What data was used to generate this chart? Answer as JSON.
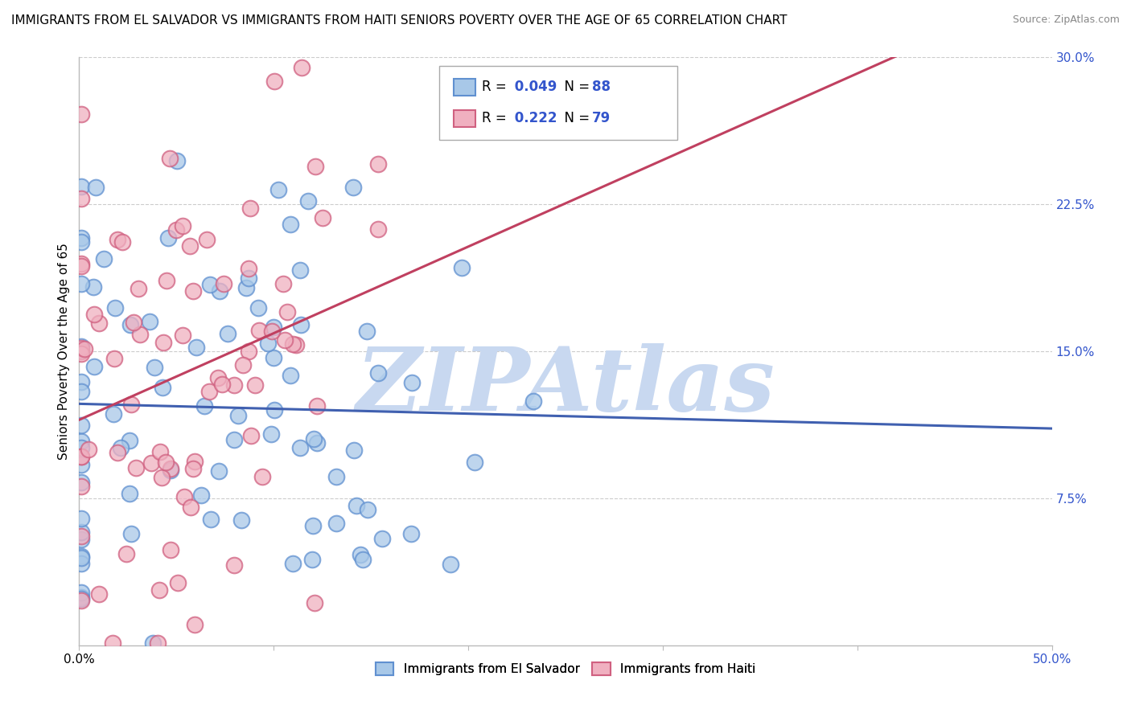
{
  "title": "IMMIGRANTS FROM EL SALVADOR VS IMMIGRANTS FROM HAITI SENIORS POVERTY OVER THE AGE OF 65 CORRELATION CHART",
  "source": "Source: ZipAtlas.com",
  "ylabel": "Seniors Poverty Over the Age of 65",
  "xlim": [
    0.0,
    0.5
  ],
  "ylim": [
    0.0,
    0.3
  ],
  "xticks": [
    0.0,
    0.1,
    0.2,
    0.3,
    0.4,
    0.5
  ],
  "xticklabels": [
    "0.0%",
    "",
    "",
    "",
    "",
    "50.0%"
  ],
  "yticks": [
    0.0,
    0.075,
    0.15,
    0.225,
    0.3
  ],
  "yticklabels_right": [
    "",
    "7.5%",
    "15.0%",
    "22.5%",
    "30.0%"
  ],
  "blue_fill_color": "#A8C8E8",
  "blue_edge_color": "#6090D0",
  "pink_fill_color": "#F0B0C0",
  "pink_edge_color": "#D06080",
  "blue_line_color": "#4060B0",
  "pink_line_color": "#C04060",
  "legend_blue_label": "Immigrants from El Salvador",
  "legend_pink_label": "Immigrants from Haiti",
  "watermark": "ZIPAtlas",
  "watermark_color": "#C8D8F0",
  "blue_R": 0.049,
  "blue_N": 88,
  "pink_R": 0.222,
  "pink_N": 79,
  "grid_color": "#CCCCCC",
  "background_color": "#FFFFFF",
  "title_fontsize": 11,
  "axis_label_fontsize": 11,
  "tick_fontsize": 11,
  "r_n_color": "#3355CC"
}
